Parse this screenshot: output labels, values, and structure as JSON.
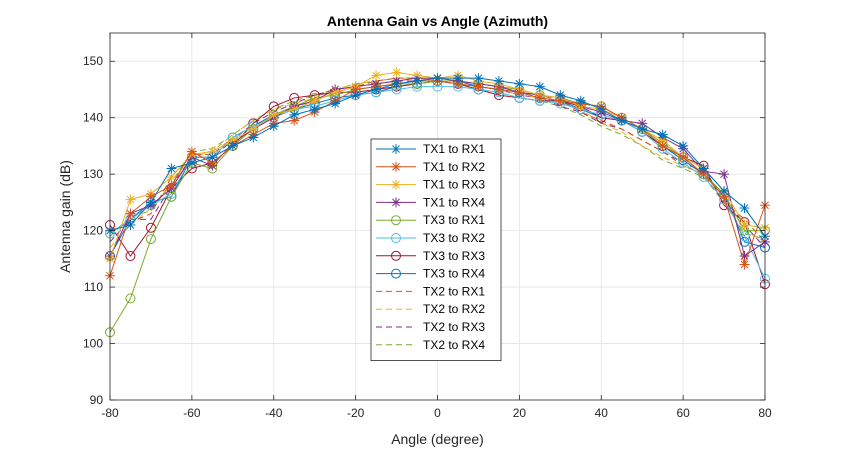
{
  "chart_data": {
    "type": "line",
    "title": "Antenna Gain vs Angle (Azimuth)",
    "xlabel": "Angle (degree)",
    "ylabel": "Antenna gain (dB)",
    "xlim": [
      -80,
      80
    ],
    "ylim": [
      90,
      155
    ],
    "xticks": [
      -80,
      -60,
      -40,
      -20,
      0,
      20,
      40,
      60,
      80
    ],
    "yticks": [
      90,
      100,
      110,
      120,
      130,
      140,
      150
    ],
    "grid": true,
    "legend_position": "center",
    "x": [
      -80,
      -75,
      -70,
      -65,
      -60,
      -55,
      -50,
      -45,
      -40,
      -35,
      -30,
      -25,
      -20,
      -15,
      -10,
      -5,
      0,
      5,
      10,
      15,
      20,
      25,
      30,
      35,
      40,
      45,
      50,
      55,
      60,
      65,
      70,
      75,
      80
    ],
    "series": [
      {
        "name": "TX1 to RX1",
        "color": "#0072BD",
        "marker": "asterisk",
        "dash": "solid",
        "values": [
          120,
          121,
          125,
          131,
          132,
          133,
          135,
          136.5,
          138.5,
          140.5,
          141.5,
          142.5,
          144,
          145,
          146,
          146.5,
          147,
          147,
          147,
          146.5,
          146,
          145.5,
          144,
          143,
          141.5,
          139.5,
          138,
          137,
          135,
          131,
          127,
          124,
          119
        ]
      },
      {
        "name": "TX1 to RX2",
        "color": "#D95319",
        "marker": "asterisk",
        "dash": "solid",
        "values": [
          112,
          123,
          126,
          128,
          134,
          132,
          135,
          137,
          139,
          139.5,
          141,
          143,
          145,
          145.5,
          146,
          146.5,
          146.5,
          146,
          145.5,
          145,
          144.5,
          143.5,
          143,
          142.5,
          142,
          140,
          138,
          135,
          133,
          130,
          126,
          114,
          124.5
        ]
      },
      {
        "name": "TX1 to RX3",
        "color": "#EDB120",
        "marker": "asterisk",
        "dash": "solid",
        "values": [
          115,
          125.5,
          126.5,
          129.5,
          133.5,
          134,
          136,
          138,
          140.5,
          141.5,
          143,
          144.5,
          145.5,
          147.5,
          148,
          147.5,
          147,
          147.5,
          146.5,
          146,
          145,
          144,
          143.5,
          142,
          141.5,
          140,
          138,
          136,
          133,
          131,
          127,
          121,
          120.5
        ]
      },
      {
        "name": "TX1 to RX4",
        "color": "#7E2F8E",
        "marker": "asterisk",
        "dash": "solid",
        "values": [
          115.5,
          123,
          124.5,
          127.5,
          133,
          131.5,
          135.5,
          138,
          140,
          142,
          143,
          145,
          145.5,
          146,
          146.5,
          147,
          147,
          146.5,
          146,
          145.5,
          144.5,
          144,
          143.5,
          142,
          141,
          139.5,
          139,
          136.5,
          134.5,
          130.5,
          130,
          115.5,
          118
        ]
      },
      {
        "name": "TX3 to RX1",
        "color": "#77AC30",
        "marker": "circle",
        "dash": "solid",
        "values": [
          102,
          108,
          118.5,
          126,
          132,
          131,
          135,
          138,
          140.5,
          142,
          143.5,
          144,
          145,
          145.5,
          146,
          146,
          146.5,
          146.5,
          146,
          145.5,
          145,
          144,
          143.5,
          142.5,
          142,
          140,
          138,
          135.5,
          133,
          130,
          126.5,
          120,
          120
        ]
      },
      {
        "name": "TX3 to RX2",
        "color": "#4DBEEE",
        "marker": "circle",
        "dash": "solid",
        "values": [
          119.5,
          122,
          124.5,
          126.5,
          133,
          133,
          136.5,
          138.5,
          140,
          141.5,
          142,
          143,
          144,
          144.5,
          145,
          145.5,
          145.5,
          145.5,
          145,
          144.5,
          143.5,
          143,
          142.5,
          141.5,
          140.5,
          139.5,
          137.5,
          134.5,
          132,
          129.5,
          125.5,
          119,
          111.5
        ]
      },
      {
        "name": "TX3 to RX3",
        "color": "#A2142F",
        "marker": "circle",
        "dash": "solid",
        "values": [
          121,
          115.5,
          120.5,
          127.5,
          131,
          132,
          135,
          139,
          142,
          143.5,
          144,
          144.5,
          144.5,
          145,
          145.5,
          146,
          146.5,
          146,
          145,
          144,
          143.5,
          143,
          143,
          142,
          140,
          139.5,
          137.5,
          135,
          133,
          131.5,
          124.5,
          121.5,
          110.5
        ]
      },
      {
        "name": "TX3 to RX4",
        "color": "#0072BD",
        "marker": "circle",
        "dash": "solid",
        "values": [
          115.5,
          122,
          125,
          126,
          133,
          133,
          136.5,
          138.5,
          140.5,
          141.5,
          142.5,
          143.5,
          144,
          144.5,
          145.5,
          146,
          146.5,
          146.5,
          145.5,
          145,
          144.5,
          143.5,
          143,
          141.5,
          140,
          139.5,
          137.5,
          135,
          132.5,
          130,
          126.5,
          118,
          117
        ]
      },
      {
        "name": "TX2 to RX1",
        "color": "#D95319",
        "marker": "none",
        "dash": "dash",
        "values": [
          120,
          121.5,
          123,
          129.5,
          133.5,
          133.5,
          136.5,
          138.5,
          140.5,
          142,
          143,
          144.5,
          145.5,
          146.5,
          147,
          147,
          147,
          146.5,
          146,
          145.5,
          144.5,
          144,
          143,
          141,
          139.5,
          138,
          136,
          134,
          131.5,
          130,
          125,
          122,
          118
        ]
      },
      {
        "name": "TX2 to RX2",
        "color": "#EDB120",
        "marker": "none",
        "dash": "dash",
        "values": [
          117,
          121,
          124,
          128,
          133,
          134,
          137,
          139.5,
          141.5,
          142.5,
          143.5,
          145,
          146,
          146.5,
          147,
          147,
          146.5,
          146,
          145.5,
          145,
          144,
          143.5,
          142.5,
          141.5,
          139,
          137.5,
          135,
          133,
          131.5,
          130,
          126,
          120,
          118
        ]
      },
      {
        "name": "TX2 to RX3",
        "color": "#7E2F8E",
        "marker": "none",
        "dash": "dash",
        "values": [
          118,
          122,
          122,
          128,
          133,
          133,
          136,
          139,
          141,
          142.5,
          144,
          145,
          145.5,
          146,
          146.5,
          146.5,
          146.5,
          146,
          145.5,
          145,
          144,
          143.5,
          142,
          141,
          139,
          138,
          136,
          134,
          132,
          130.5,
          126,
          121,
          117
        ]
      },
      {
        "name": "TX2 to RX4",
        "color": "#77AC30",
        "marker": "none",
        "dash": "dash",
        "values": [
          119,
          122.5,
          123.5,
          128.5,
          134,
          134.5,
          137,
          139.5,
          141.5,
          143,
          144,
          145,
          146,
          146.5,
          147,
          147,
          146.5,
          146,
          145,
          144.5,
          143.5,
          143,
          142,
          140.5,
          138.5,
          137,
          135,
          132.5,
          131,
          129.5,
          125,
          119.5,
          118.5
        ]
      }
    ]
  }
}
